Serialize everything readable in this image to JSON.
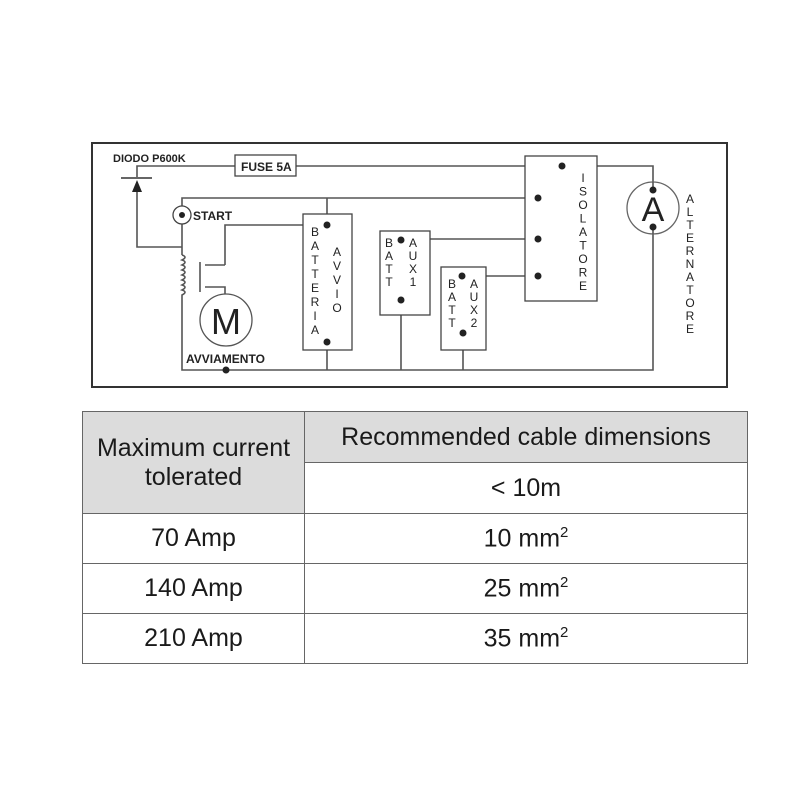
{
  "diagram": {
    "diode": "DIODO P600K",
    "fuse": "FUSE 5A",
    "start": "START",
    "motor": "M",
    "motor_label": "AVVIAMENTO",
    "batteria": [
      "B",
      "A",
      "T",
      "T",
      "E",
      "R",
      "I",
      "A"
    ],
    "avvio": [
      "A",
      "V",
      "V",
      "I",
      "O"
    ],
    "batt": [
      "B",
      "A",
      "T",
      "T"
    ],
    "aux1": [
      "A",
      "U",
      "X",
      "1"
    ],
    "aux2": [
      "A",
      "U",
      "X",
      "2"
    ],
    "isolatore": [
      "I",
      "S",
      "O",
      "L",
      "A",
      "T",
      "O",
      "R",
      "E"
    ],
    "alternator": "A",
    "alternatore": [
      "A",
      "L",
      "T",
      "E",
      "R",
      "N",
      "A",
      "T",
      "O",
      "R",
      "E"
    ]
  },
  "table": {
    "header_left": "Maximum current tolerated",
    "header_right": "Recommended cable dimensions",
    "subheader": "< 10m",
    "unit_sup": "2",
    "rows": [
      {
        "current": "70 Amp",
        "size": "10 mm"
      },
      {
        "current": "140 Amp",
        "size": "25 mm"
      },
      {
        "current": "210 Amp",
        "size": "35 mm"
      }
    ]
  }
}
